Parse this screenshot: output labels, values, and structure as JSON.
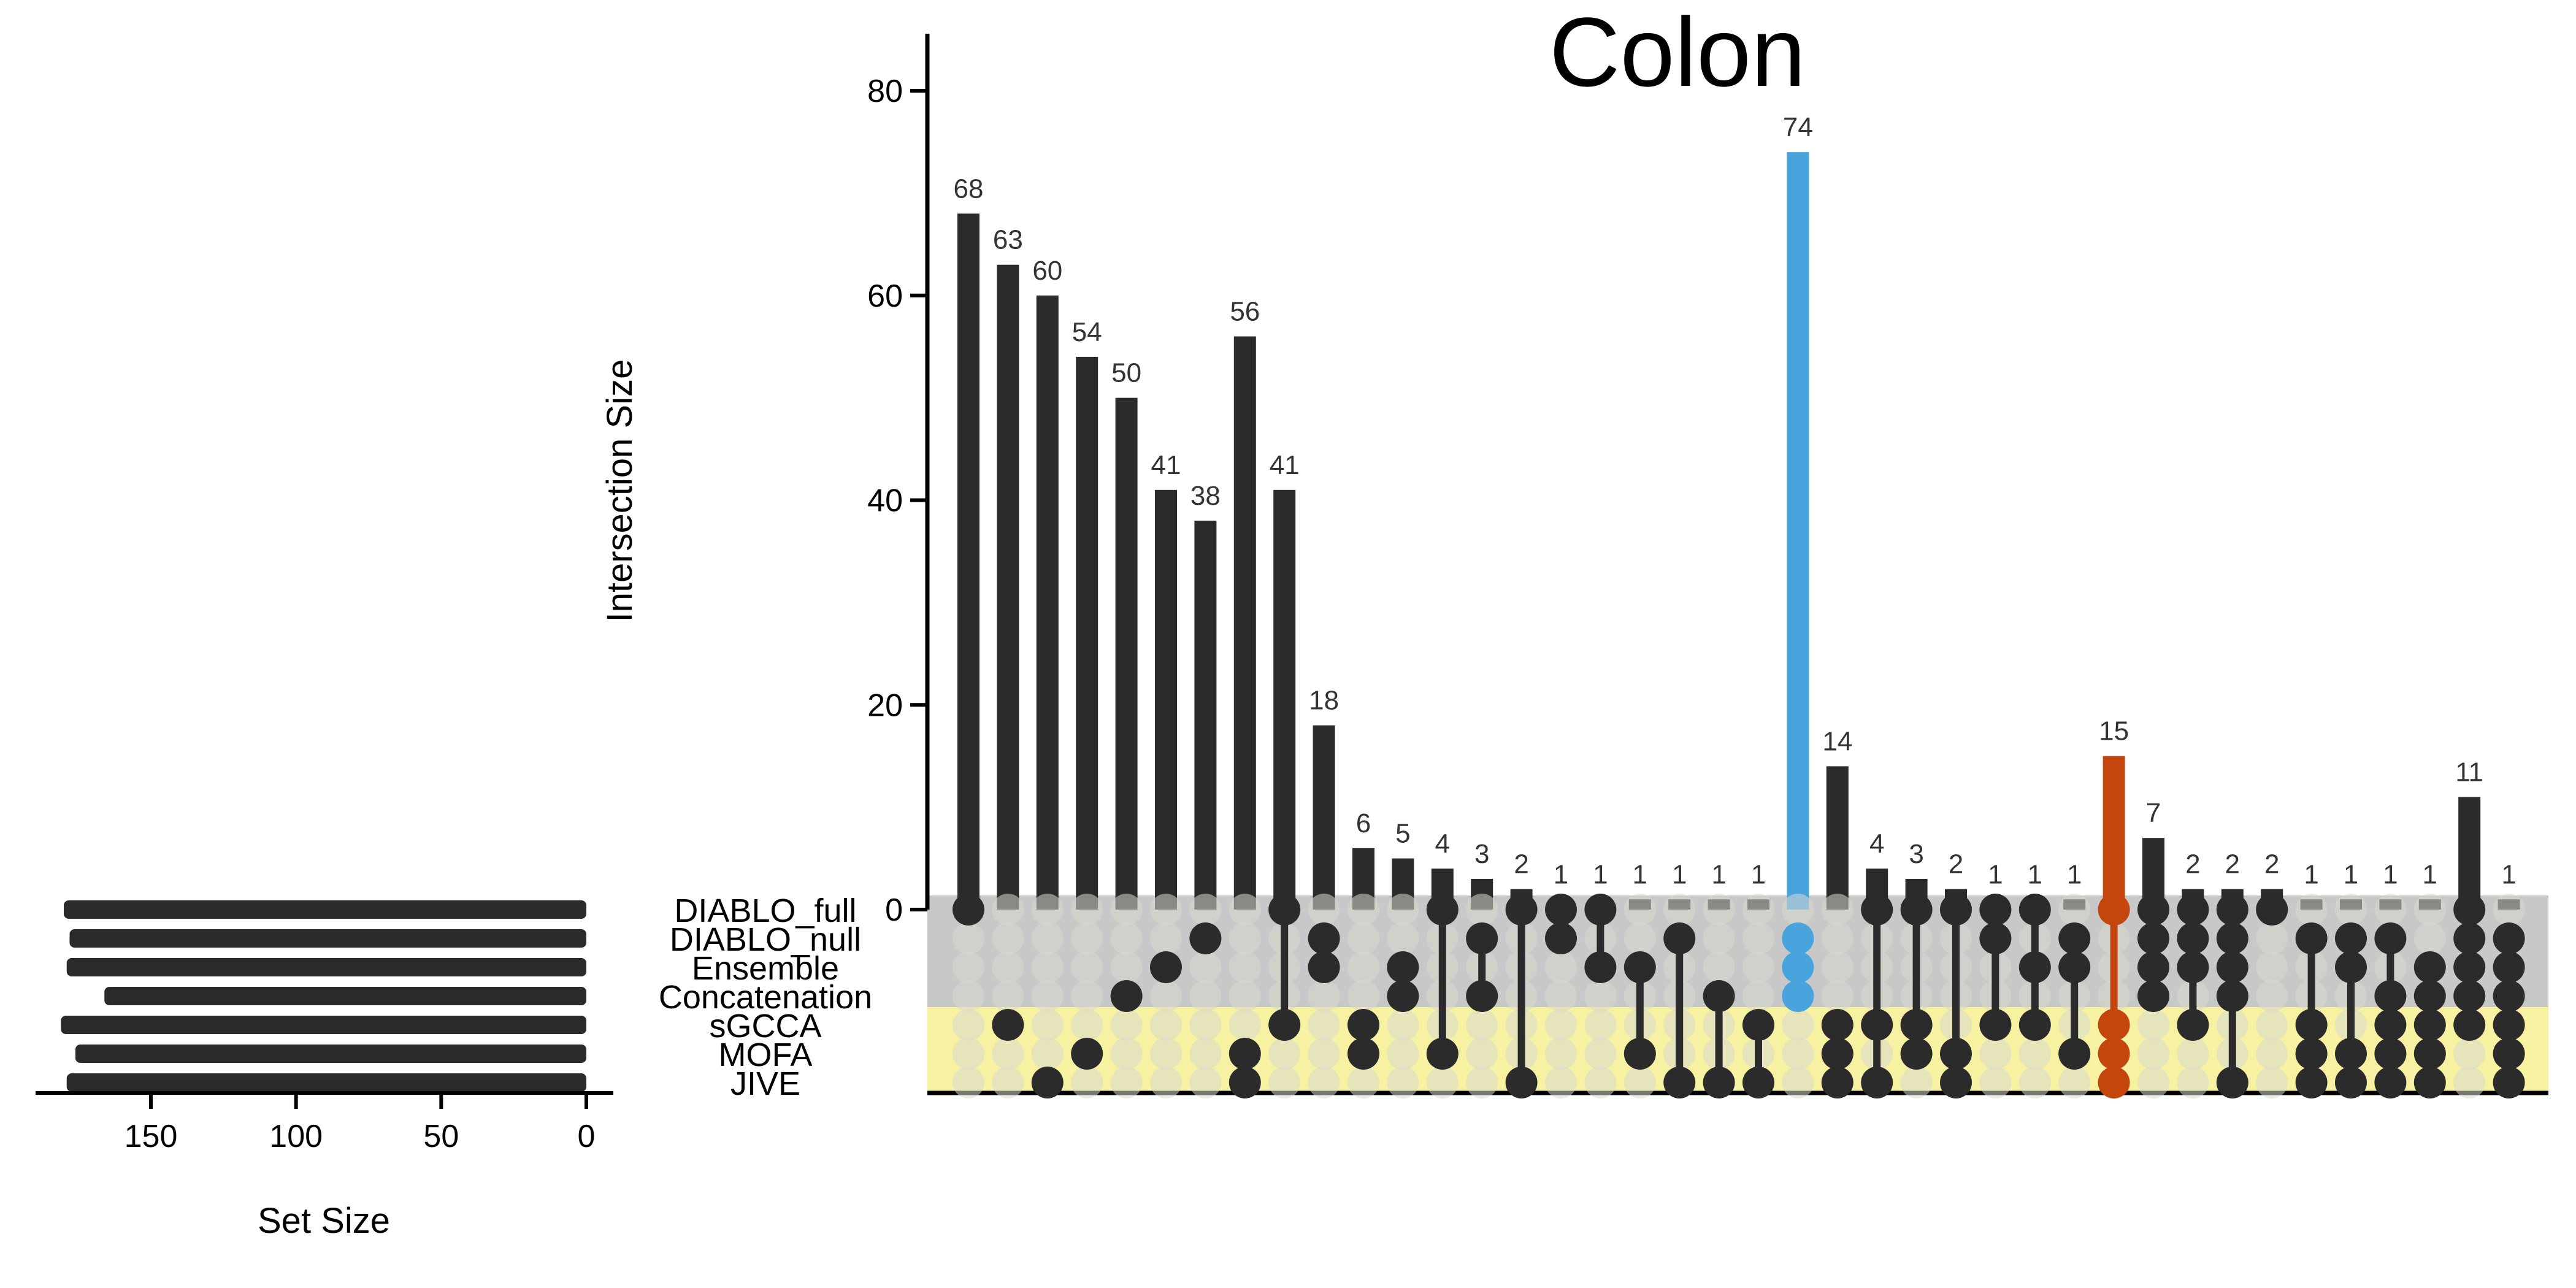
{
  "chart_data": {
    "type": "bar",
    "title": "Colon",
    "ylabel": "Intersection Size",
    "xlabel": "",
    "ylim": [
      0,
      85
    ],
    "yticks": [
      0,
      20,
      40,
      60,
      80
    ],
    "values": [
      68,
      63,
      60,
      54,
      50,
      41,
      38,
      56,
      41,
      18,
      6,
      5,
      4,
      3,
      2,
      1,
      1,
      1,
      1,
      1,
      1,
      74,
      14,
      4,
      3,
      2,
      1,
      1,
      1,
      15,
      7,
      2,
      2,
      2,
      1,
      1,
      1,
      1,
      11,
      1
    ],
    "sets": [
      "DIABLO_full",
      "DIABLO_null",
      "Ensemble",
      "Concatenation",
      "sGCCA",
      "MOFA",
      "JIVE"
    ],
    "memberships": [
      [
        "DIABLO_full"
      ],
      [
        "sGCCA"
      ],
      [
        "JIVE"
      ],
      [
        "MOFA"
      ],
      [
        "Concatenation"
      ],
      [
        "Ensemble"
      ],
      [
        "DIABLO_null"
      ],
      [
        "MOFA",
        "JIVE"
      ],
      [
        "DIABLO_full",
        "sGCCA"
      ],
      [
        "DIABLO_null",
        "Ensemble"
      ],
      [
        "sGCCA",
        "MOFA"
      ],
      [
        "Ensemble",
        "Concatenation"
      ],
      [
        "DIABLO_full",
        "MOFA"
      ],
      [
        "DIABLO_null",
        "Concatenation"
      ],
      [
        "DIABLO_full",
        "JIVE"
      ],
      [
        "DIABLO_full",
        "DIABLO_null"
      ],
      [
        "DIABLO_full",
        "Ensemble"
      ],
      [
        "Ensemble",
        "MOFA"
      ],
      [
        "DIABLO_null",
        "JIVE"
      ],
      [
        "Concatenation",
        "JIVE"
      ],
      [
        "sGCCA",
        "JIVE"
      ],
      [
        "DIABLO_null",
        "Ensemble",
        "Concatenation"
      ],
      [
        "sGCCA",
        "MOFA",
        "JIVE"
      ],
      [
        "DIABLO_full",
        "sGCCA",
        "JIVE"
      ],
      [
        "DIABLO_full",
        "sGCCA",
        "MOFA"
      ],
      [
        "DIABLO_full",
        "MOFA",
        "JIVE"
      ],
      [
        "DIABLO_full",
        "DIABLO_null",
        "sGCCA"
      ],
      [
        "DIABLO_full",
        "Ensemble",
        "sGCCA"
      ],
      [
        "DIABLO_null",
        "Ensemble",
        "MOFA"
      ],
      [
        "DIABLO_full",
        "sGCCA",
        "MOFA",
        "JIVE"
      ],
      [
        "DIABLO_full",
        "DIABLO_null",
        "Ensemble",
        "Concatenation"
      ],
      [
        "DIABLO_full",
        "DIABLO_null",
        "Ensemble",
        "sGCCA"
      ],
      [
        "DIABLO_full",
        "DIABLO_null",
        "Ensemble",
        "Concatenation",
        "JIVE"
      ],
      [
        "DIABLO_full"
      ],
      [
        "DIABLO_null",
        "sGCCA",
        "MOFA",
        "JIVE"
      ],
      [
        "DIABLO_null",
        "Ensemble",
        "MOFA",
        "JIVE"
      ],
      [
        "DIABLO_null",
        "Concatenation",
        "sGCCA",
        "MOFA",
        "JIVE"
      ],
      [
        "Ensemble",
        "Concatenation",
        "sGCCA",
        "MOFA",
        "JIVE"
      ],
      [
        "DIABLO_full",
        "DIABLO_null",
        "Ensemble",
        "Concatenation",
        "sGCCA"
      ],
      [
        "DIABLO_null",
        "Ensemble",
        "Concatenation",
        "sGCCA",
        "MOFA",
        "JIVE"
      ]
    ],
    "highlight": {
      "21": "#49a3dd",
      "29": "#c5460c"
    },
    "set_sizes": {
      "xlabel": "Set Size",
      "xlim": [
        200,
        0
      ],
      "xticks": [
        150,
        100,
        50,
        0
      ],
      "values": [
        180,
        178,
        179,
        166,
        181,
        176,
        179
      ]
    },
    "colors": {
      "bar": "#2b2b2b",
      "dot_active": "#2b2b2b",
      "dot_inactive": "#d9d9d0",
      "band_top_sets": "#c8c8c8",
      "band_bottom_sets": "#f7f1a2",
      "axis": "#000000"
    }
  }
}
